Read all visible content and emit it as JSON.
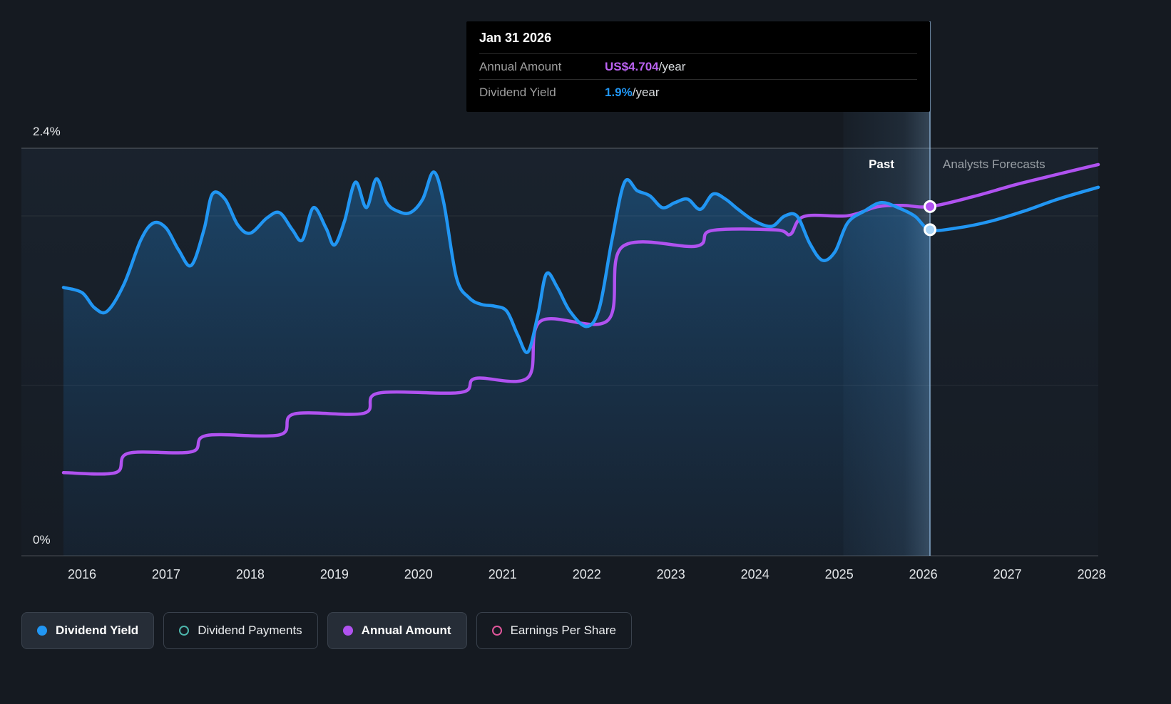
{
  "tooltip": {
    "date": "Jan 31 2026",
    "rows": [
      {
        "label": "Annual Amount",
        "value": "US$4.704",
        "suffix": "/year",
        "color": "#bb63f2"
      },
      {
        "label": "Dividend Yield",
        "value": "1.9%",
        "suffix": "/year",
        "color": "#2196f3"
      }
    ]
  },
  "labels": {
    "past": "Past",
    "forecast": "Analysts Forecasts"
  },
  "legend": [
    {
      "label": "Dividend Yield",
      "color": "#2196f3",
      "style": "filled",
      "active": true
    },
    {
      "label": "Dividend Payments",
      "color": "#4db6ac",
      "style": "outline",
      "active": false
    },
    {
      "label": "Annual Amount",
      "color": "#b052f0",
      "style": "filled",
      "active": true
    },
    {
      "label": "Earnings Per Share",
      "color": "#e0569b",
      "style": "outline",
      "active": false
    }
  ],
  "chart_data": {
    "type": "line",
    "x_ticks": [
      "2016",
      "2017",
      "2018",
      "2019",
      "2020",
      "2021",
      "2022",
      "2023",
      "2024",
      "2025",
      "2026",
      "2027",
      "2028"
    ],
    "y_axis": {
      "top_label": "2.4%",
      "bottom_label": "0%",
      "top_value": 2.4,
      "bottom_value": 0
    },
    "forecast_divider_year": 2026.08,
    "highlight_band": [
      2025.05,
      2026.08
    ],
    "legend_position": "bottom",
    "grid": "horizontal",
    "series": [
      {
        "name": "Dividend Yield",
        "color": "#2196f3",
        "unit": "%",
        "axis_max": 2.4,
        "area_fill": true,
        "points": [
          [
            2015.78,
            1.58
          ],
          [
            2016.0,
            1.55
          ],
          [
            2016.15,
            1.46
          ],
          [
            2016.3,
            1.44
          ],
          [
            2016.5,
            1.6
          ],
          [
            2016.7,
            1.86
          ],
          [
            2016.85,
            1.96
          ],
          [
            2017.0,
            1.93
          ],
          [
            2017.15,
            1.8
          ],
          [
            2017.3,
            1.71
          ],
          [
            2017.45,
            1.92
          ],
          [
            2017.55,
            2.13
          ],
          [
            2017.7,
            2.1
          ],
          [
            2017.85,
            1.95
          ],
          [
            2018.0,
            1.9
          ],
          [
            2018.2,
            1.99
          ],
          [
            2018.35,
            2.02
          ],
          [
            2018.5,
            1.92
          ],
          [
            2018.62,
            1.86
          ],
          [
            2018.75,
            2.05
          ],
          [
            2018.9,
            1.93
          ],
          [
            2019.0,
            1.83
          ],
          [
            2019.12,
            1.97
          ],
          [
            2019.25,
            2.2
          ],
          [
            2019.38,
            2.05
          ],
          [
            2019.5,
            2.22
          ],
          [
            2019.62,
            2.08
          ],
          [
            2019.75,
            2.03
          ],
          [
            2019.9,
            2.02
          ],
          [
            2020.05,
            2.1
          ],
          [
            2020.18,
            2.26
          ],
          [
            2020.3,
            2.08
          ],
          [
            2020.45,
            1.64
          ],
          [
            2020.6,
            1.52
          ],
          [
            2020.75,
            1.48
          ],
          [
            2020.9,
            1.47
          ],
          [
            2021.05,
            1.44
          ],
          [
            2021.18,
            1.3
          ],
          [
            2021.3,
            1.2
          ],
          [
            2021.42,
            1.42
          ],
          [
            2021.52,
            1.66
          ],
          [
            2021.65,
            1.58
          ],
          [
            2021.8,
            1.44
          ],
          [
            2022.0,
            1.35
          ],
          [
            2022.15,
            1.46
          ],
          [
            2022.3,
            1.86
          ],
          [
            2022.45,
            2.2
          ],
          [
            2022.6,
            2.15
          ],
          [
            2022.75,
            2.12
          ],
          [
            2022.9,
            2.05
          ],
          [
            2023.05,
            2.08
          ],
          [
            2023.2,
            2.1
          ],
          [
            2023.35,
            2.04
          ],
          [
            2023.5,
            2.13
          ],
          [
            2023.65,
            2.1
          ],
          [
            2023.8,
            2.04
          ],
          [
            2024.0,
            1.97
          ],
          [
            2024.2,
            1.94
          ],
          [
            2024.35,
            2.0
          ],
          [
            2024.5,
            2.0
          ],
          [
            2024.65,
            1.84
          ],
          [
            2024.8,
            1.74
          ],
          [
            2024.95,
            1.79
          ],
          [
            2025.1,
            1.96
          ],
          [
            2025.3,
            2.03
          ],
          [
            2025.5,
            2.08
          ],
          [
            2025.7,
            2.05
          ],
          [
            2025.9,
            2.0
          ],
          [
            2026.08,
            1.92
          ],
          [
            2026.4,
            1.93
          ],
          [
            2026.8,
            1.97
          ],
          [
            2027.2,
            2.03
          ],
          [
            2027.6,
            2.1
          ],
          [
            2028.08,
            2.17
          ]
        ]
      },
      {
        "name": "Annual Amount",
        "color": "#b052f0",
        "unit": "US$/year",
        "axis_max": 5.49,
        "area_fill": false,
        "points": [
          [
            2015.78,
            1.12
          ],
          [
            2016.4,
            1.12
          ],
          [
            2016.55,
            1.38
          ],
          [
            2017.3,
            1.4
          ],
          [
            2017.48,
            1.62
          ],
          [
            2018.35,
            1.63
          ],
          [
            2018.52,
            1.91
          ],
          [
            2019.35,
            1.92
          ],
          [
            2019.52,
            2.19
          ],
          [
            2020.5,
            2.2
          ],
          [
            2020.68,
            2.39
          ],
          [
            2021.3,
            2.4
          ],
          [
            2021.45,
            3.16
          ],
          [
            2022.25,
            3.17
          ],
          [
            2022.42,
            4.16
          ],
          [
            2023.3,
            4.17
          ],
          [
            2023.48,
            4.38
          ],
          [
            2024.25,
            4.39
          ],
          [
            2024.42,
            4.33
          ],
          [
            2024.58,
            4.57
          ],
          [
            2025.1,
            4.58
          ],
          [
            2025.45,
            4.7
          ],
          [
            2025.75,
            4.72
          ],
          [
            2026.08,
            4.704
          ],
          [
            2026.6,
            4.84
          ],
          [
            2027.1,
            5.0
          ],
          [
            2027.6,
            5.14
          ],
          [
            2028.08,
            5.27
          ]
        ]
      }
    ],
    "markers": [
      {
        "series": "Annual Amount",
        "year": 2026.08,
        "value": 4.704,
        "fill": "#b052f0"
      },
      {
        "series": "Dividend Yield",
        "year": 2026.08,
        "value": 1.92,
        "fill": "#a8d4f7"
      }
    ]
  }
}
